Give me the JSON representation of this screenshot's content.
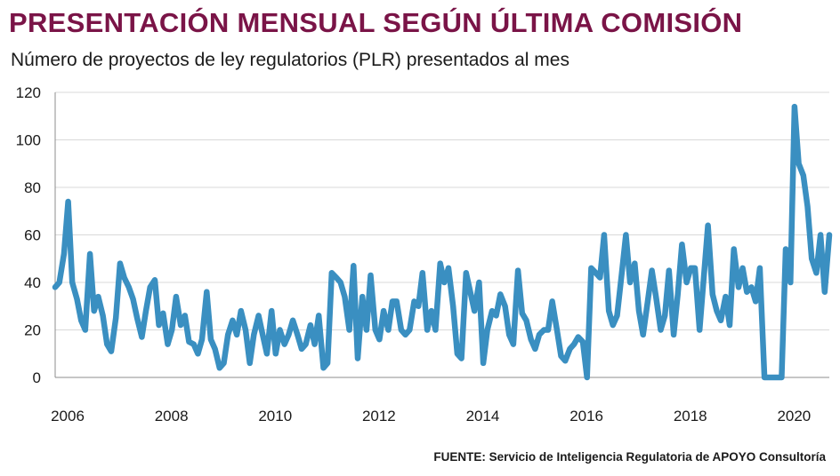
{
  "colors": {
    "title": "#7a1447",
    "line": "#3a8fc1",
    "grid": "#d9d9d9",
    "axis": "#8c8c8c"
  },
  "source": "FUENTE: Servicio de Inteligencia Regulatoria de APOYO Consultoría",
  "chart_data": {
    "type": "line",
    "title": "PRESENTACIÓN MENSUAL SEGÚN ÚLTIMA COMISIÓN",
    "subtitle": "Número de proyectos de ley regulatorios (PLR) presentados al mes",
    "xlabel": "",
    "ylabel": "",
    "ylim": [
      0,
      120
    ],
    "xlim": [
      2006.0,
      2020.92
    ],
    "yticks": [
      0,
      20,
      40,
      60,
      80,
      100,
      120
    ],
    "xticks": [
      2006,
      2008,
      2010,
      2012,
      2014,
      2016,
      2018,
      2020
    ],
    "grid": true,
    "legend": "none",
    "series": [
      {
        "values": [
          [
            2006.0,
            38
          ],
          [
            2006.08,
            40
          ],
          [
            2006.17,
            52
          ],
          [
            2006.25,
            74
          ],
          [
            2006.33,
            40
          ],
          [
            2006.42,
            33
          ],
          [
            2006.5,
            24
          ],
          [
            2006.58,
            20
          ],
          [
            2006.67,
            52
          ],
          [
            2006.75,
            28
          ],
          [
            2006.83,
            34
          ],
          [
            2006.92,
            26
          ],
          [
            2007.0,
            14
          ],
          [
            2007.08,
            11
          ],
          [
            2007.17,
            25
          ],
          [
            2007.25,
            48
          ],
          [
            2007.33,
            42
          ],
          [
            2007.42,
            38
          ],
          [
            2007.5,
            33
          ],
          [
            2007.58,
            25
          ],
          [
            2007.67,
            17
          ],
          [
            2007.75,
            28
          ],
          [
            2007.83,
            38
          ],
          [
            2007.92,
            41
          ],
          [
            2008.0,
            22
          ],
          [
            2008.08,
            27
          ],
          [
            2008.17,
            14
          ],
          [
            2008.25,
            20
          ],
          [
            2008.33,
            34
          ],
          [
            2008.42,
            22
          ],
          [
            2008.5,
            26
          ],
          [
            2008.58,
            15
          ],
          [
            2008.67,
            14
          ],
          [
            2008.75,
            10
          ],
          [
            2008.83,
            16
          ],
          [
            2008.92,
            36
          ],
          [
            2009.0,
            16
          ],
          [
            2009.08,
            12
          ],
          [
            2009.17,
            4
          ],
          [
            2009.25,
            6
          ],
          [
            2009.33,
            18
          ],
          [
            2009.42,
            24
          ],
          [
            2009.5,
            18
          ],
          [
            2009.58,
            28
          ],
          [
            2009.67,
            20
          ],
          [
            2009.75,
            6
          ],
          [
            2009.83,
            18
          ],
          [
            2009.92,
            26
          ],
          [
            2010.0,
            18
          ],
          [
            2010.08,
            10
          ],
          [
            2010.17,
            28
          ],
          [
            2010.25,
            10
          ],
          [
            2010.33,
            20
          ],
          [
            2010.42,
            14
          ],
          [
            2010.5,
            18
          ],
          [
            2010.58,
            24
          ],
          [
            2010.67,
            18
          ],
          [
            2010.75,
            12
          ],
          [
            2010.83,
            14
          ],
          [
            2010.92,
            22
          ],
          [
            2011.0,
            14
          ],
          [
            2011.08,
            26
          ],
          [
            2011.17,
            4
          ],
          [
            2011.25,
            6
          ],
          [
            2011.33,
            44
          ],
          [
            2011.42,
            42
          ],
          [
            2011.5,
            40
          ],
          [
            2011.58,
            34
          ],
          [
            2011.67,
            20
          ],
          [
            2011.75,
            47
          ],
          [
            2011.83,
            8
          ],
          [
            2011.92,
            34
          ],
          [
            2012.0,
            20
          ],
          [
            2012.08,
            43
          ],
          [
            2012.17,
            20
          ],
          [
            2012.25,
            16
          ],
          [
            2012.33,
            28
          ],
          [
            2012.42,
            20
          ],
          [
            2012.5,
            32
          ],
          [
            2012.58,
            32
          ],
          [
            2012.67,
            20
          ],
          [
            2012.75,
            18
          ],
          [
            2012.83,
            20
          ],
          [
            2012.92,
            32
          ],
          [
            2013.0,
            30
          ],
          [
            2013.08,
            44
          ],
          [
            2013.17,
            20
          ],
          [
            2013.25,
            28
          ],
          [
            2013.33,
            20
          ],
          [
            2013.42,
            48
          ],
          [
            2013.5,
            40
          ],
          [
            2013.58,
            46
          ],
          [
            2013.67,
            30
          ],
          [
            2013.75,
            10
          ],
          [
            2013.83,
            8
          ],
          [
            2013.92,
            44
          ],
          [
            2014.0,
            36
          ],
          [
            2014.08,
            28
          ],
          [
            2014.17,
            40
          ],
          [
            2014.25,
            6
          ],
          [
            2014.33,
            20
          ],
          [
            2014.42,
            28
          ],
          [
            2014.5,
            26
          ],
          [
            2014.58,
            35
          ],
          [
            2014.67,
            30
          ],
          [
            2014.75,
            18
          ],
          [
            2014.83,
            14
          ],
          [
            2014.92,
            45
          ],
          [
            2015.0,
            27
          ],
          [
            2015.08,
            24
          ],
          [
            2015.17,
            16
          ],
          [
            2015.25,
            12
          ],
          [
            2015.33,
            18
          ],
          [
            2015.42,
            20
          ],
          [
            2015.5,
            20
          ],
          [
            2015.58,
            32
          ],
          [
            2015.67,
            20
          ],
          [
            2015.75,
            9
          ],
          [
            2015.83,
            7
          ],
          [
            2015.92,
            12
          ],
          [
            2016.0,
            14
          ],
          [
            2016.08,
            17
          ],
          [
            2016.17,
            15
          ],
          [
            2016.25,
            0
          ],
          [
            2016.33,
            46
          ],
          [
            2016.42,
            44
          ],
          [
            2016.5,
            42
          ],
          [
            2016.58,
            60
          ],
          [
            2016.67,
            28
          ],
          [
            2016.75,
            22
          ],
          [
            2016.83,
            26
          ],
          [
            2016.92,
            44
          ],
          [
            2017.0,
            60
          ],
          [
            2017.08,
            40
          ],
          [
            2017.17,
            48
          ],
          [
            2017.25,
            28
          ],
          [
            2017.33,
            18
          ],
          [
            2017.42,
            32
          ],
          [
            2017.5,
            45
          ],
          [
            2017.58,
            34
          ],
          [
            2017.67,
            20
          ],
          [
            2017.75,
            26
          ],
          [
            2017.83,
            45
          ],
          [
            2017.92,
            18
          ],
          [
            2018.0,
            35
          ],
          [
            2018.08,
            56
          ],
          [
            2018.17,
            40
          ],
          [
            2018.25,
            46
          ],
          [
            2018.33,
            46
          ],
          [
            2018.42,
            20
          ],
          [
            2018.5,
            42
          ],
          [
            2018.58,
            64
          ],
          [
            2018.67,
            35
          ],
          [
            2018.75,
            28
          ],
          [
            2018.83,
            24
          ],
          [
            2018.92,
            34
          ],
          [
            2019.0,
            22
          ],
          [
            2019.08,
            54
          ],
          [
            2019.17,
            38
          ],
          [
            2019.25,
            46
          ],
          [
            2019.33,
            36
          ],
          [
            2019.42,
            38
          ],
          [
            2019.5,
            32
          ],
          [
            2019.58,
            46
          ],
          [
            2019.67,
            0
          ],
          [
            2019.75,
            0
          ],
          [
            2019.83,
            0
          ],
          [
            2019.92,
            0
          ],
          [
            2020.0,
            0
          ],
          [
            2020.08,
            54
          ],
          [
            2020.17,
            40
          ],
          [
            2020.25,
            114
          ],
          [
            2020.33,
            90
          ],
          [
            2020.42,
            85
          ],
          [
            2020.5,
            72
          ],
          [
            2020.58,
            50
          ],
          [
            2020.67,
            44
          ],
          [
            2020.75,
            60
          ],
          [
            2020.83,
            36
          ],
          [
            2020.92,
            60
          ]
        ]
      }
    ]
  }
}
